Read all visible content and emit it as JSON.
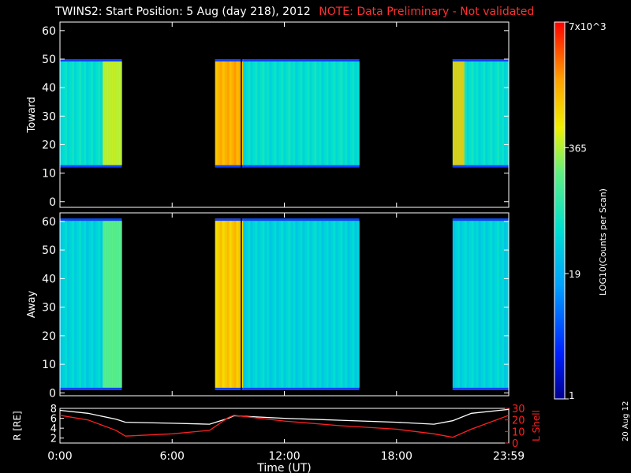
{
  "title": {
    "main": "TWINS2: Start Position:  5 Aug (day 218), 2012",
    "note": "NOTE: Data Preliminary - Not validated"
  },
  "stamp": "20 Aug 12",
  "colors": {
    "background": "#000000",
    "axes": "#ffffff",
    "note": "#ff3030",
    "lshell_line": "#ff2020",
    "r_line": "#ffffff"
  },
  "chart_data": [
    {
      "type": "heatmap",
      "name": "toward",
      "ylabel": "Toward",
      "ylim": [
        -2,
        63
      ],
      "yticks": [
        0,
        10,
        20,
        30,
        40,
        50,
        60
      ],
      "xlim": [
        0,
        24
      ],
      "xtick_labels": [
        "0:00",
        "6:00",
        "12:00",
        "18:00",
        "23:59"
      ],
      "xticks": [
        0,
        6,
        12,
        18,
        24
      ],
      "data_gaps_hours": [
        [
          3.3,
          8.3
        ],
        [
          16.0,
          21.0
        ]
      ],
      "segments": [
        {
          "start": 0.0,
          "end": 3.3,
          "ymin": 12,
          "ymax": 50,
          "level": 0.45,
          "bright_band": [
            2.2,
            3.3
          ],
          "bright_level": 0.7
        },
        {
          "start": 8.3,
          "end": 9.8,
          "ymin": 12,
          "ymax": 50,
          "level": 0.82
        },
        {
          "start": 9.8,
          "end": 16.0,
          "ymin": 12,
          "ymax": 50,
          "level": 0.45
        },
        {
          "start": 21.0,
          "end": 24.0,
          "ymin": 12,
          "ymax": 50,
          "level": 0.45,
          "bright_band": [
            21.0,
            21.5
          ],
          "bright_level": 0.78
        }
      ],
      "marker_hour": 9.7
    },
    {
      "type": "heatmap",
      "name": "away",
      "ylabel": "Away",
      "ylim": [
        -1,
        63
      ],
      "yticks": [
        0,
        10,
        20,
        30,
        40,
        50,
        60
      ],
      "xlim": [
        0,
        24
      ],
      "xtick_labels": [
        "0:00",
        "6:00",
        "12:00",
        "18:00",
        "23:59"
      ],
      "xticks": [
        0,
        6,
        12,
        18,
        24
      ],
      "segments": [
        {
          "start": 0.0,
          "end": 3.3,
          "ymin": 1,
          "ymax": 61,
          "level": 0.42,
          "bright_band": [
            2.2,
            3.3
          ],
          "bright_level": 0.6
        },
        {
          "start": 8.3,
          "end": 9.8,
          "ymin": 1,
          "ymax": 61,
          "level": 0.78
        },
        {
          "start": 9.8,
          "end": 16.0,
          "ymin": 1,
          "ymax": 61,
          "level": 0.42
        },
        {
          "start": 21.0,
          "end": 24.0,
          "ymin": 1,
          "ymax": 61,
          "level": 0.42
        }
      ],
      "marker_hour": 9.7
    },
    {
      "type": "colorbar",
      "ylabel": "LOG10(Counts per Scan)",
      "tick_labels": [
        "1",
        "19",
        "365",
        "7x10^3"
      ],
      "tick_values": [
        1,
        19,
        365,
        7000
      ]
    },
    {
      "type": "line",
      "name": "orbit",
      "xlabel": "Time (UT)",
      "ylabel_left": "R [RE]",
      "ylabel_right": "L Shell",
      "ylim_left": [
        1,
        8
      ],
      "yticks_left": [
        2,
        4,
        6,
        8
      ],
      "ylim_right": [
        0,
        30
      ],
      "yticks_right": [
        0,
        10,
        20,
        30
      ],
      "xlim": [
        0,
        24
      ],
      "xtick_labels": [
        "0:00",
        "6:00",
        "12:00",
        "18:00",
        "23:59"
      ],
      "xticks": [
        0,
        6,
        12,
        18,
        24
      ],
      "series": [
        {
          "axis": "left",
          "color": "#ffffff",
          "x": [
            0,
            1.5,
            3,
            3.5,
            6,
            8,
            9,
            9.3,
            12,
            15,
            18,
            20,
            21,
            22,
            24
          ],
          "y": [
            7.6,
            7.0,
            5.8,
            5.2,
            5.0,
            4.8,
            6.0,
            6.5,
            6.0,
            5.6,
            5.2,
            4.8,
            5.5,
            7.0,
            7.8
          ]
        },
        {
          "axis": "right",
          "color": "#ff2020",
          "x": [
            0,
            1.5,
            3,
            3.5,
            6,
            8,
            9,
            9.3,
            12,
            15,
            18,
            20,
            21,
            22,
            24
          ],
          "y": [
            24,
            20,
            11,
            6,
            8,
            11,
            22,
            24,
            19,
            15,
            12,
            8,
            5,
            12,
            24
          ]
        }
      ]
    }
  ]
}
